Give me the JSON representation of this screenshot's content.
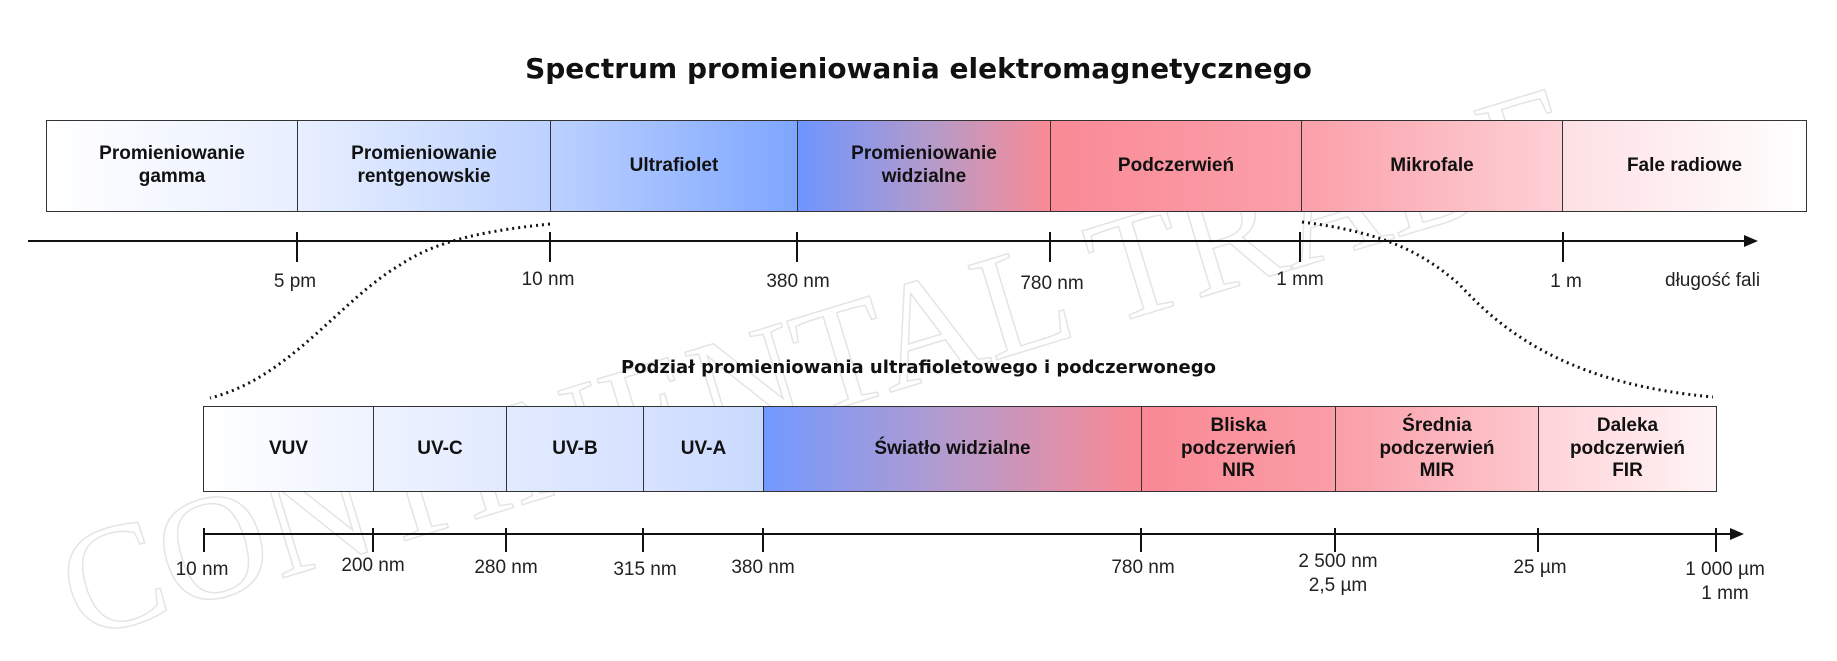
{
  "title": "Spectrum promieniowania elektromagnetycznego",
  "subtitle": "Podział promieniowania ultrafioletowego i podczerwonego",
  "watermark": "CONTINENTAL TRADE",
  "colors": {
    "gamma": "#e8efff",
    "blue": "#7aa2ff",
    "red": "#f98d98",
    "pink": "#fde3e6",
    "border": "#333333",
    "axis": "#111111"
  },
  "top_bands": [
    {
      "label": "Promieniowanie\ngamma"
    },
    {
      "label": "Promieniowanie\nrentgenowskie"
    },
    {
      "label": "Ultrafiolet"
    },
    {
      "label": "Promieniowanie\nwidzialne"
    },
    {
      "label": "Podczerwień"
    },
    {
      "label": "Mikrofale"
    },
    {
      "label": "Fale radiowe"
    }
  ],
  "top_ticks": [
    "5 pm",
    "10 nm",
    "380 nm",
    "780 nm",
    "1 mm",
    "1 m"
  ],
  "top_axis_label": "długość fali",
  "bottom_bands": [
    {
      "label": "VUV"
    },
    {
      "label": "UV-C"
    },
    {
      "label": "UV-B"
    },
    {
      "label": "UV-A"
    },
    {
      "label": "Światło widzialne"
    },
    {
      "label": "Bliska\npodczerwień\nNIR"
    },
    {
      "label": "Średnia\npodczerwień\nMIR"
    },
    {
      "label": "Daleka\npodczerwień\nFIR"
    }
  ],
  "bottom_ticks": [
    "10 nm",
    "200 nm",
    "280 nm",
    "315 nm",
    "380 nm",
    "780 nm",
    "2 500 nm\n2,5 µm",
    "25 µm",
    "1 000 µm\n1 mm"
  ]
}
